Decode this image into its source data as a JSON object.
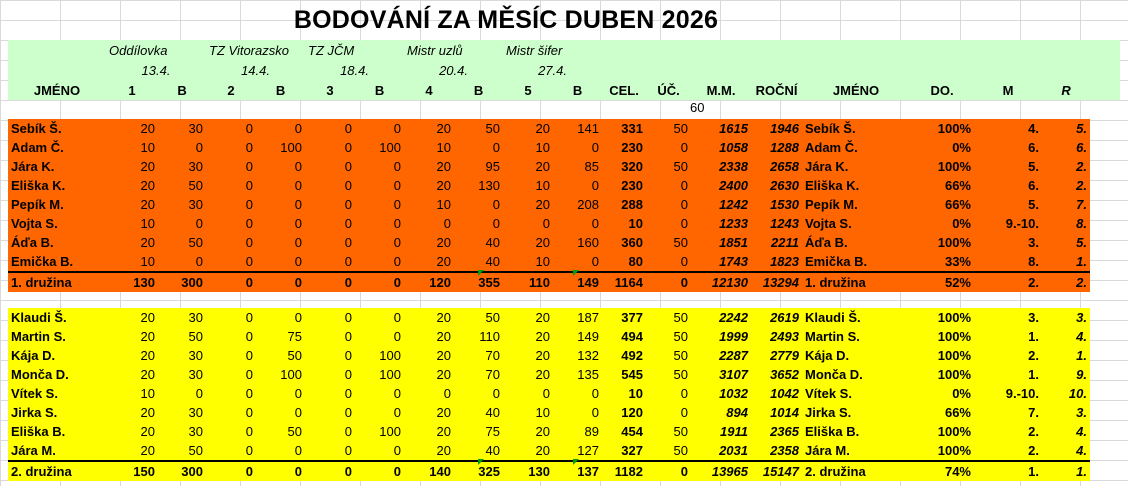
{
  "title": "BODOVÁNÍ ZA MĚSÍC DUBEN 2026",
  "events": [
    {
      "name": "Oddílovka",
      "date": "13.4."
    },
    {
      "name": "TZ Vitorazsko",
      "date": "14.4."
    },
    {
      "name": "TZ JČM",
      "date": "18.4."
    },
    {
      "name": "Mistr uzlů",
      "date": "20.4."
    },
    {
      "name": "Mistr šifer",
      "date": "27.4."
    }
  ],
  "columns": [
    "JMÉNO",
    "1",
    "B",
    "2",
    "B",
    "3",
    "B",
    "4",
    "B",
    "5",
    "B",
    "CEL.",
    "ÚČ.",
    "M.M.",
    "ROČNÍ",
    "JMÉNO",
    "DO.",
    "M",
    "R"
  ],
  "uc_value": "60",
  "team1": {
    "color": "#ff6600",
    "rows": [
      [
        "Sebík Š.",
        "20",
        "30",
        "0",
        "0",
        "0",
        "0",
        "20",
        "50",
        "20",
        "141",
        "331",
        "50",
        "1615",
        "1946",
        "Sebík Š.",
        "100%",
        "4.",
        "5."
      ],
      [
        "Adam Č.",
        "10",
        "0",
        "0",
        "100",
        "0",
        "100",
        "10",
        "0",
        "10",
        "0",
        "230",
        "0",
        "1058",
        "1288",
        "Adam Č.",
        "0%",
        "6.",
        "6."
      ],
      [
        "Jára K.",
        "20",
        "30",
        "0",
        "0",
        "0",
        "0",
        "20",
        "95",
        "20",
        "85",
        "320",
        "50",
        "2338",
        "2658",
        "Jára K.",
        "100%",
        "5.",
        "2."
      ],
      [
        "Eliška K.",
        "20",
        "50",
        "0",
        "0",
        "0",
        "0",
        "20",
        "130",
        "10",
        "0",
        "230",
        "0",
        "2400",
        "2630",
        "Eliška K.",
        "66%",
        "6.",
        "2."
      ],
      [
        "Pepík M.",
        "20",
        "30",
        "0",
        "0",
        "0",
        "0",
        "10",
        "0",
        "20",
        "208",
        "288",
        "0",
        "1242",
        "1530",
        "Pepík M.",
        "66%",
        "5.",
        "7."
      ],
      [
        "Vojta S.",
        "10",
        "0",
        "0",
        "0",
        "0",
        "0",
        "0",
        "0",
        "0",
        "0",
        "10",
        "0",
        "1233",
        "1243",
        "Vojta S.",
        "0%",
        "9.-10.",
        "8."
      ],
      [
        "Áďa B.",
        "20",
        "50",
        "0",
        "0",
        "0",
        "0",
        "20",
        "40",
        "20",
        "160",
        "360",
        "50",
        "1851",
        "2211",
        "Áďa B.",
        "100%",
        "3.",
        "5."
      ],
      [
        "Emička B.",
        "10",
        "0",
        "0",
        "0",
        "0",
        "0",
        "20",
        "40",
        "10",
        "0",
        "80",
        "0",
        "1743",
        "1823",
        "Emička B.",
        "33%",
        "8.",
        "1."
      ]
    ],
    "total": [
      "1. družina",
      "130",
      "300",
      "0",
      "0",
      "0",
      "0",
      "120",
      "355",
      "110",
      "149",
      "1164",
      "0",
      "12130",
      "13294",
      "1. družina",
      "52%",
      "2.",
      "2."
    ]
  },
  "team2": {
    "color": "#ffff00",
    "rows": [
      [
        "Klaudi Š.",
        "20",
        "30",
        "0",
        "0",
        "0",
        "0",
        "20",
        "50",
        "20",
        "187",
        "377",
        "50",
        "2242",
        "2619",
        "Klaudi Š.",
        "100%",
        "3.",
        "3."
      ],
      [
        "Martin S.",
        "20",
        "50",
        "0",
        "75",
        "0",
        "0",
        "20",
        "110",
        "20",
        "149",
        "494",
        "50",
        "1999",
        "2493",
        "Martin S.",
        "100%",
        "1.",
        "4."
      ],
      [
        "Kája D.",
        "20",
        "30",
        "0",
        "50",
        "0",
        "100",
        "20",
        "70",
        "20",
        "132",
        "492",
        "50",
        "2287",
        "2779",
        "Kája D.",
        "100%",
        "2.",
        "1."
      ],
      [
        "Monča D.",
        "20",
        "30",
        "0",
        "100",
        "0",
        "100",
        "20",
        "70",
        "20",
        "135",
        "545",
        "50",
        "3107",
        "3652",
        "Monča D.",
        "100%",
        "1.",
        "9."
      ],
      [
        "Vítek S.",
        "10",
        "0",
        "0",
        "0",
        "0",
        "0",
        "0",
        "0",
        "0",
        "0",
        "10",
        "0",
        "1032",
        "1042",
        "Vítek S.",
        "0%",
        "9.-10.",
        "10."
      ],
      [
        "Jirka S.",
        "20",
        "30",
        "0",
        "0",
        "0",
        "0",
        "20",
        "40",
        "10",
        "0",
        "120",
        "0",
        "894",
        "1014",
        "Jirka S.",
        "66%",
        "7.",
        "3."
      ],
      [
        "Eliška B.",
        "20",
        "30",
        "0",
        "50",
        "0",
        "100",
        "20",
        "75",
        "20",
        "89",
        "454",
        "50",
        "1911",
        "2365",
        "Eliška B.",
        "100%",
        "2.",
        "4."
      ],
      [
        "Jára M.",
        "20",
        "50",
        "0",
        "0",
        "0",
        "0",
        "20",
        "40",
        "20",
        "127",
        "327",
        "50",
        "2031",
        "2358",
        "Jára M.",
        "100%",
        "2.",
        "4."
      ]
    ],
    "total": [
      "2. družina",
      "150",
      "300",
      "0",
      "0",
      "0",
      "0",
      "140",
      "325",
      "130",
      "137",
      "1182",
      "0",
      "13965",
      "15147",
      "2. družina",
      "74%",
      "1.",
      "1."
    ]
  }
}
